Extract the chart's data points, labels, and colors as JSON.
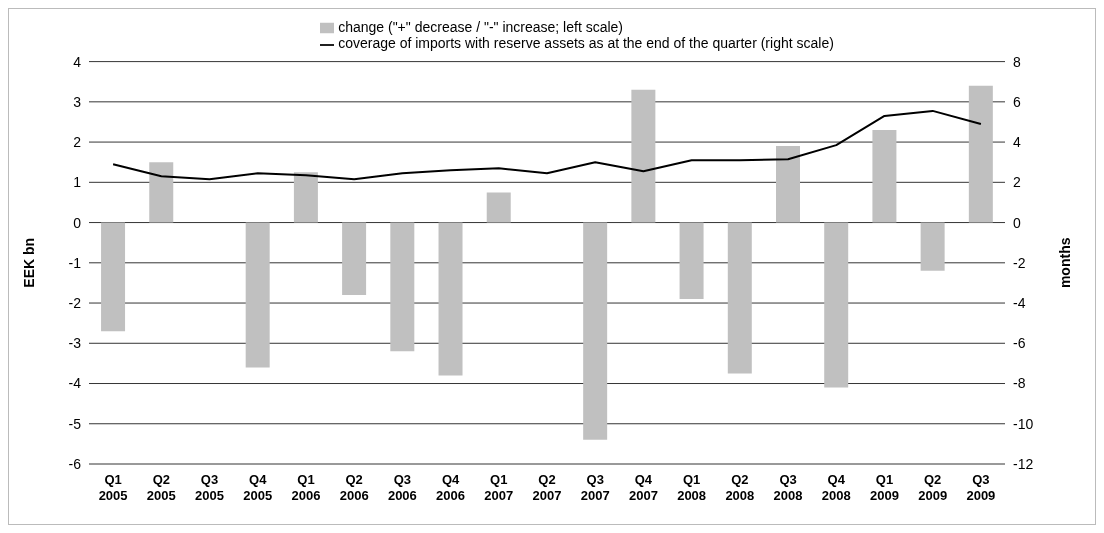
{
  "chart_data": {
    "type": "bar",
    "categories": [
      "Q1 2005",
      "Q2 2005",
      "Q3 2005",
      "Q4 2005",
      "Q1 2006",
      "Q2 2006",
      "Q3 2006",
      "Q4 2006",
      "Q1 2007",
      "Q2 2007",
      "Q3 2007",
      "Q4 2007",
      "Q1 2008",
      "Q2 2008",
      "Q3 2008",
      "Q4 2008",
      "Q1 2009",
      "Q2 2009",
      "Q3 2009"
    ],
    "ylabel": "EEK bn",
    "y2label": "months",
    "ylim": [
      -6,
      4
    ],
    "yticks": [
      -6,
      -5,
      -4,
      -3,
      -2,
      -1,
      0,
      1,
      2,
      3,
      4
    ],
    "y2lim": [
      -12,
      8
    ],
    "y2ticks": [
      -12,
      -10,
      -8,
      -6,
      -4,
      -2,
      0,
      2,
      4,
      6,
      8
    ],
    "grid": "y",
    "legend": "top",
    "marker": "none",
    "series": [
      {
        "name": "change (\"+\" decrease / \"-\" increase; left scale)",
        "color": "#c0c0c0",
        "values": [
          -2.7,
          1.5,
          0,
          -3.6,
          1.25,
          -1.8,
          -3.2,
          -3.8,
          0.75,
          0,
          -5.4,
          3.3,
          -1.9,
          -3.75,
          1.9,
          -4.1,
          2.3,
          -1.2,
          3.4
        ]
      },
      {
        "name": "coverage of imports with reserve assets as at the end of the quarter (right scale)",
        "type": "line",
        "axis": "y2",
        "color": "#000000",
        "values": [
          2.9,
          2.3,
          2.15,
          2.45,
          2.35,
          2.15,
          2.45,
          2.6,
          2.7,
          2.45,
          3.0,
          2.55,
          3.1,
          3.1,
          3.15,
          3.85,
          5.3,
          5.55,
          4.9
        ]
      }
    ]
  }
}
